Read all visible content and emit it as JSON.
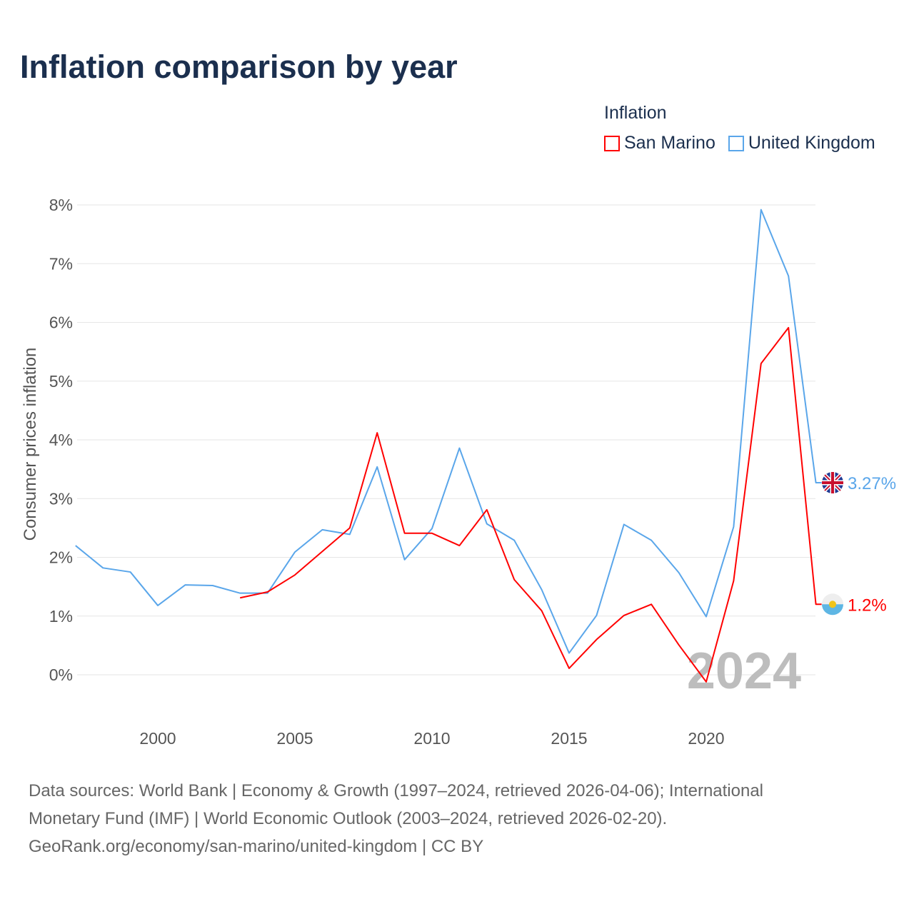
{
  "title": "Inflation comparison by year",
  "legend": {
    "title": "Inflation",
    "items": [
      {
        "label": "San Marino",
        "color": "#ff0000"
      },
      {
        "label": "United Kingdom",
        "color": "#5aa6ea"
      }
    ]
  },
  "footer": {
    "line1": "Data sources: World Bank | Economy & Growth (1997–2024, retrieved 2026-04-06); International",
    "line2": "Monetary Fund (IMF) | World Economic Outlook (2003–2024, retrieved 2026-02-20).",
    "line3": "GeoRank.org/economy/san-marino/united-kingdom | CC BY"
  },
  "chart_data": {
    "type": "line",
    "title": "Inflation comparison by year",
    "xlabel": "",
    "ylabel": "Consumer prices inflation",
    "xlim": [
      1997,
      2024
    ],
    "ylim": [
      -0.5,
      8.3
    ],
    "yticks": [
      "0%",
      "1%",
      "2%",
      "3%",
      "4%",
      "5%",
      "6%",
      "7%",
      "8%"
    ],
    "xticks": [
      "2000",
      "2005",
      "2010",
      "2015",
      "2020"
    ],
    "grid": true,
    "legend_position": "top-right",
    "year_watermark": "2024",
    "series": [
      {
        "name": "United Kingdom",
        "color": "#5aa6ea",
        "end_label": "3.27%",
        "x": [
          1997,
          1998,
          1999,
          2000,
          2001,
          2002,
          2003,
          2004,
          2005,
          2006,
          2007,
          2008,
          2009,
          2010,
          2011,
          2012,
          2013,
          2014,
          2015,
          2016,
          2017,
          2018,
          2019,
          2020,
          2021,
          2022,
          2023,
          2024
        ],
        "values": [
          2.2,
          1.82,
          1.75,
          1.18,
          1.53,
          1.52,
          1.39,
          1.39,
          2.09,
          2.47,
          2.39,
          3.54,
          1.96,
          2.49,
          3.86,
          2.57,
          2.29,
          1.45,
          0.37,
          1.01,
          2.56,
          2.29,
          1.74,
          0.99,
          2.52,
          7.92,
          6.79,
          3.27
        ]
      },
      {
        "name": "San Marino",
        "color": "#ff0000",
        "end_label": "1.2%",
        "x": [
          2003,
          2004,
          2005,
          2006,
          2007,
          2008,
          2009,
          2010,
          2011,
          2012,
          2013,
          2014,
          2015,
          2016,
          2017,
          2018,
          2019,
          2020,
          2021,
          2022,
          2023,
          2024
        ],
        "values": [
          1.31,
          1.41,
          1.7,
          2.1,
          2.5,
          4.12,
          2.41,
          2.41,
          2.2,
          2.81,
          1.62,
          1.09,
          0.11,
          0.6,
          1.01,
          1.2,
          0.51,
          -0.12,
          1.6,
          5.3,
          5.91,
          1.2
        ]
      }
    ]
  }
}
